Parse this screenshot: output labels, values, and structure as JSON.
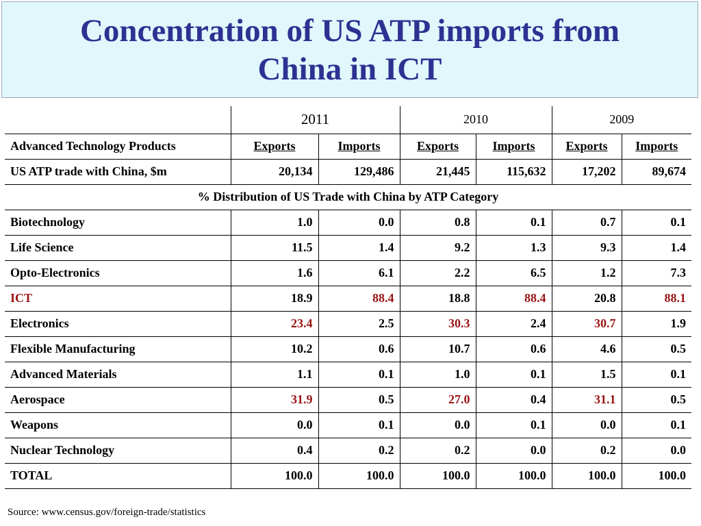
{
  "title": {
    "line1": "Concentration of US ATP imports from",
    "line2": "China in ICT"
  },
  "table": {
    "years": [
      "2011",
      "2010",
      "2009"
    ],
    "header_label": "Advanced Technology Products",
    "column_headers": [
      "Exports",
      "Imports",
      "Exports",
      "Imports",
      "Exports",
      "Imports"
    ],
    "trade_row": {
      "label": "US ATP trade with China, $m",
      "values": [
        "20,134",
        "129,486",
        "21,445",
        "115,632",
        "17,202",
        "89,674"
      ]
    },
    "distribution_caption": "% Distribution of US Trade with China by ATP Category",
    "categories": [
      {
        "label": "Biotechnology",
        "values": [
          "1.0",
          "0.0",
          "0.8",
          "0.1",
          "0.7",
          "0.1"
        ],
        "highlight": []
      },
      {
        "label": "Life Science",
        "values": [
          "11.5",
          "1.4",
          "9.2",
          "1.3",
          "9.3",
          "1.4"
        ],
        "highlight": []
      },
      {
        "label": "Opto-Electronics",
        "values": [
          "1.6",
          "6.1",
          "2.2",
          "6.5",
          "1.2",
          "7.3"
        ],
        "highlight": []
      },
      {
        "label": "ICT",
        "values": [
          "18.9",
          "88.4",
          "18.8",
          "88.4",
          "20.8",
          "88.1"
        ],
        "highlight": [
          1,
          3,
          5
        ],
        "label_highlight": true
      },
      {
        "label": "Electronics",
        "values": [
          "23.4",
          "2.5",
          "30.3",
          "2.4",
          "30.7",
          "1.9"
        ],
        "highlight": [
          0,
          2,
          4
        ]
      },
      {
        "label": "Flexible Manufacturing",
        "values": [
          "10.2",
          "0.6",
          "10.7",
          "0.6",
          "4.6",
          "0.5"
        ],
        "highlight": []
      },
      {
        "label": "Advanced Materials",
        "values": [
          "1.1",
          "0.1",
          "1.0",
          "0.1",
          "1.5",
          "0.1"
        ],
        "highlight": []
      },
      {
        "label": "Aerospace",
        "values": [
          "31.9",
          "0.5",
          "27.0",
          "0.4",
          "31.1",
          "0.5"
        ],
        "highlight": [
          0,
          2,
          4
        ]
      },
      {
        "label": "Weapons",
        "values": [
          "0.0",
          "0.1",
          "0.0",
          "0.1",
          "0.0",
          "0.1"
        ],
        "highlight": []
      },
      {
        "label": "Nuclear Technology",
        "values": [
          "0.4",
          "0.2",
          "0.2",
          "0.0",
          "0.2",
          "0.0"
        ],
        "highlight": []
      },
      {
        "label": "TOTAL",
        "values": [
          "100.0",
          "100.0",
          "100.0",
          "100.0",
          "100.0",
          "100.0"
        ],
        "highlight": []
      }
    ]
  },
  "source": "Source: www.census.gov/foreign-trade/statistics",
  "colors": {
    "title": "#2e3192",
    "title_background": "#e0f7fb",
    "label": "#1c1c8c",
    "highlight": "#9b1414"
  }
}
